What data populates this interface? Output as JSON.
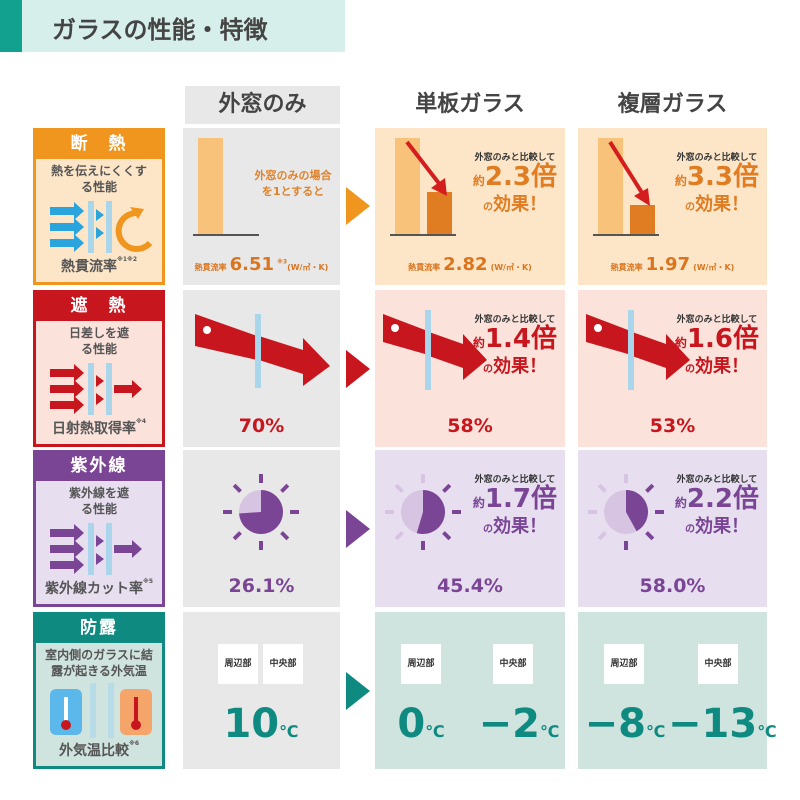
{
  "title": "ガラスの性能・特徴",
  "columns": [
    "外窓のみ",
    "単板ガラス",
    "複層ガラス"
  ],
  "colors": {
    "heat": "#f0961e",
    "solar": "#c8161e",
    "uv": "#7b4596",
    "dew": "#0f8a80",
    "glass": "#a9d6ea"
  },
  "compare_prefix": "外窓のみと比較して",
  "approx": "約",
  "times": "倍",
  "effect_small": "の",
  "effect": "効果！",
  "heat": {
    "label": "断　熱",
    "desc": "熱を伝えにくくする性能",
    "metric": "熱貫流率",
    "metric_note": "※1※2",
    "base_note": "外窓のみの場合を1とすると",
    "metric_short": "熱貫流率",
    "unit": "(W/㎡・K)",
    "unit_note": "※3",
    "values": [
      "6.51",
      "2.82",
      "1.97"
    ],
    "ratios": [
      "2.3",
      "3.3"
    ]
  },
  "solar": {
    "label": "遮　熱",
    "desc": "日差しを遮る性能",
    "metric": "日射熱取得率",
    "metric_note": "※4",
    "values": [
      "70%",
      "58%",
      "53%"
    ],
    "ratios": [
      "1.4",
      "1.6"
    ]
  },
  "uv": {
    "label": "紫外線",
    "desc": "紫外線を遮る性能",
    "metric": "紫外線カット率",
    "metric_note": "※5",
    "values": [
      "26.1%",
      "45.4%",
      "58.0%"
    ],
    "cut_fraction": [
      0.261,
      0.454,
      0.58
    ],
    "ratios": [
      "1.7",
      "2.2"
    ]
  },
  "dew": {
    "label": "防露",
    "desc": "室内側のガラスに結露が起きる外気温",
    "metric": "外気温比較",
    "metric_note": "※6",
    "tags": [
      "周辺部",
      "中央部"
    ],
    "unit": "℃",
    "outer": "10",
    "single": [
      "0",
      "−2"
    ],
    "double": [
      "−8",
      "−13"
    ]
  }
}
